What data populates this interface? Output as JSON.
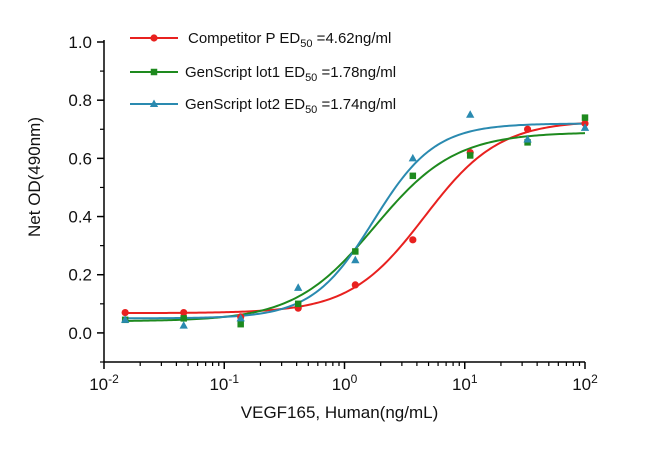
{
  "chart_data": {
    "type": "scatter",
    "title": "",
    "xlabel": "VEGF165, Human(ng/mL)",
    "ylabel": "Net OD(490nm)",
    "xscale": "log",
    "xlim": [
      0.01,
      100
    ],
    "ylim": [
      -0.1,
      1.0
    ],
    "x_ticks": [
      {
        "value": 0.01,
        "base": "10",
        "exp": "-2"
      },
      {
        "value": 0.1,
        "base": "10",
        "exp": "-1"
      },
      {
        "value": 1,
        "base": "10",
        "exp": "0"
      },
      {
        "value": 10,
        "base": "10",
        "exp": "1"
      },
      {
        "value": 100,
        "base": "10",
        "exp": "2"
      }
    ],
    "y_ticks": [
      {
        "value": 0.0,
        "label": "0.0"
      },
      {
        "value": 0.2,
        "label": "0.2"
      },
      {
        "value": 0.4,
        "label": "0.4"
      },
      {
        "value": 0.6,
        "label": "0.6"
      },
      {
        "value": 0.8,
        "label": "0.8"
      },
      {
        "value": 1.0,
        "label": "1.0"
      }
    ],
    "grid": false,
    "legend_position": "top",
    "series": [
      {
        "name": "Competitor P",
        "legend_ed": "ED",
        "legend_sub": "50",
        "legend_value": "=4.62ng/ml",
        "color": "#e8211f",
        "marker": "circle",
        "x": [
          0.015,
          0.046,
          0.137,
          0.412,
          1.23,
          3.7,
          11.1,
          33.3,
          100
        ],
        "y": [
          0.07,
          0.07,
          0.055,
          0.085,
          0.165,
          0.32,
          0.62,
          0.7,
          0.72
        ],
        "fit": {
          "bottom": 0.068,
          "top": 0.73,
          "ec50": 4.62,
          "hill": 1.4
        }
      },
      {
        "name": "GenScript lot1",
        "legend_ed": "ED",
        "legend_sub": "50",
        "legend_value": "=1.78ng/ml",
        "color": "#1e8a1e",
        "marker": "square",
        "x": [
          0.015,
          0.046,
          0.137,
          0.412,
          1.23,
          3.7,
          11.1,
          33.3,
          100
        ],
        "y": [
          0.045,
          0.05,
          0.03,
          0.1,
          0.28,
          0.54,
          0.61,
          0.655,
          0.74
        ],
        "fit": {
          "bottom": 0.04,
          "top": 0.69,
          "ec50": 1.78,
          "hill": 1.3
        }
      },
      {
        "name": "GenScript lot2",
        "legend_ed": "ED",
        "legend_sub": "50",
        "legend_value": "=1.74ng/ml",
        "color": "#2a8ab0",
        "marker": "triangle",
        "x": [
          0.015,
          0.046,
          0.137,
          0.412,
          1.23,
          3.7,
          11.1,
          33.3,
          100
        ],
        "y": [
          0.045,
          0.025,
          0.05,
          0.155,
          0.25,
          0.6,
          0.75,
          0.665,
          0.705
        ],
        "fit": {
          "bottom": 0.05,
          "top": 0.72,
          "ec50": 1.74,
          "hill": 1.7
        }
      }
    ]
  }
}
